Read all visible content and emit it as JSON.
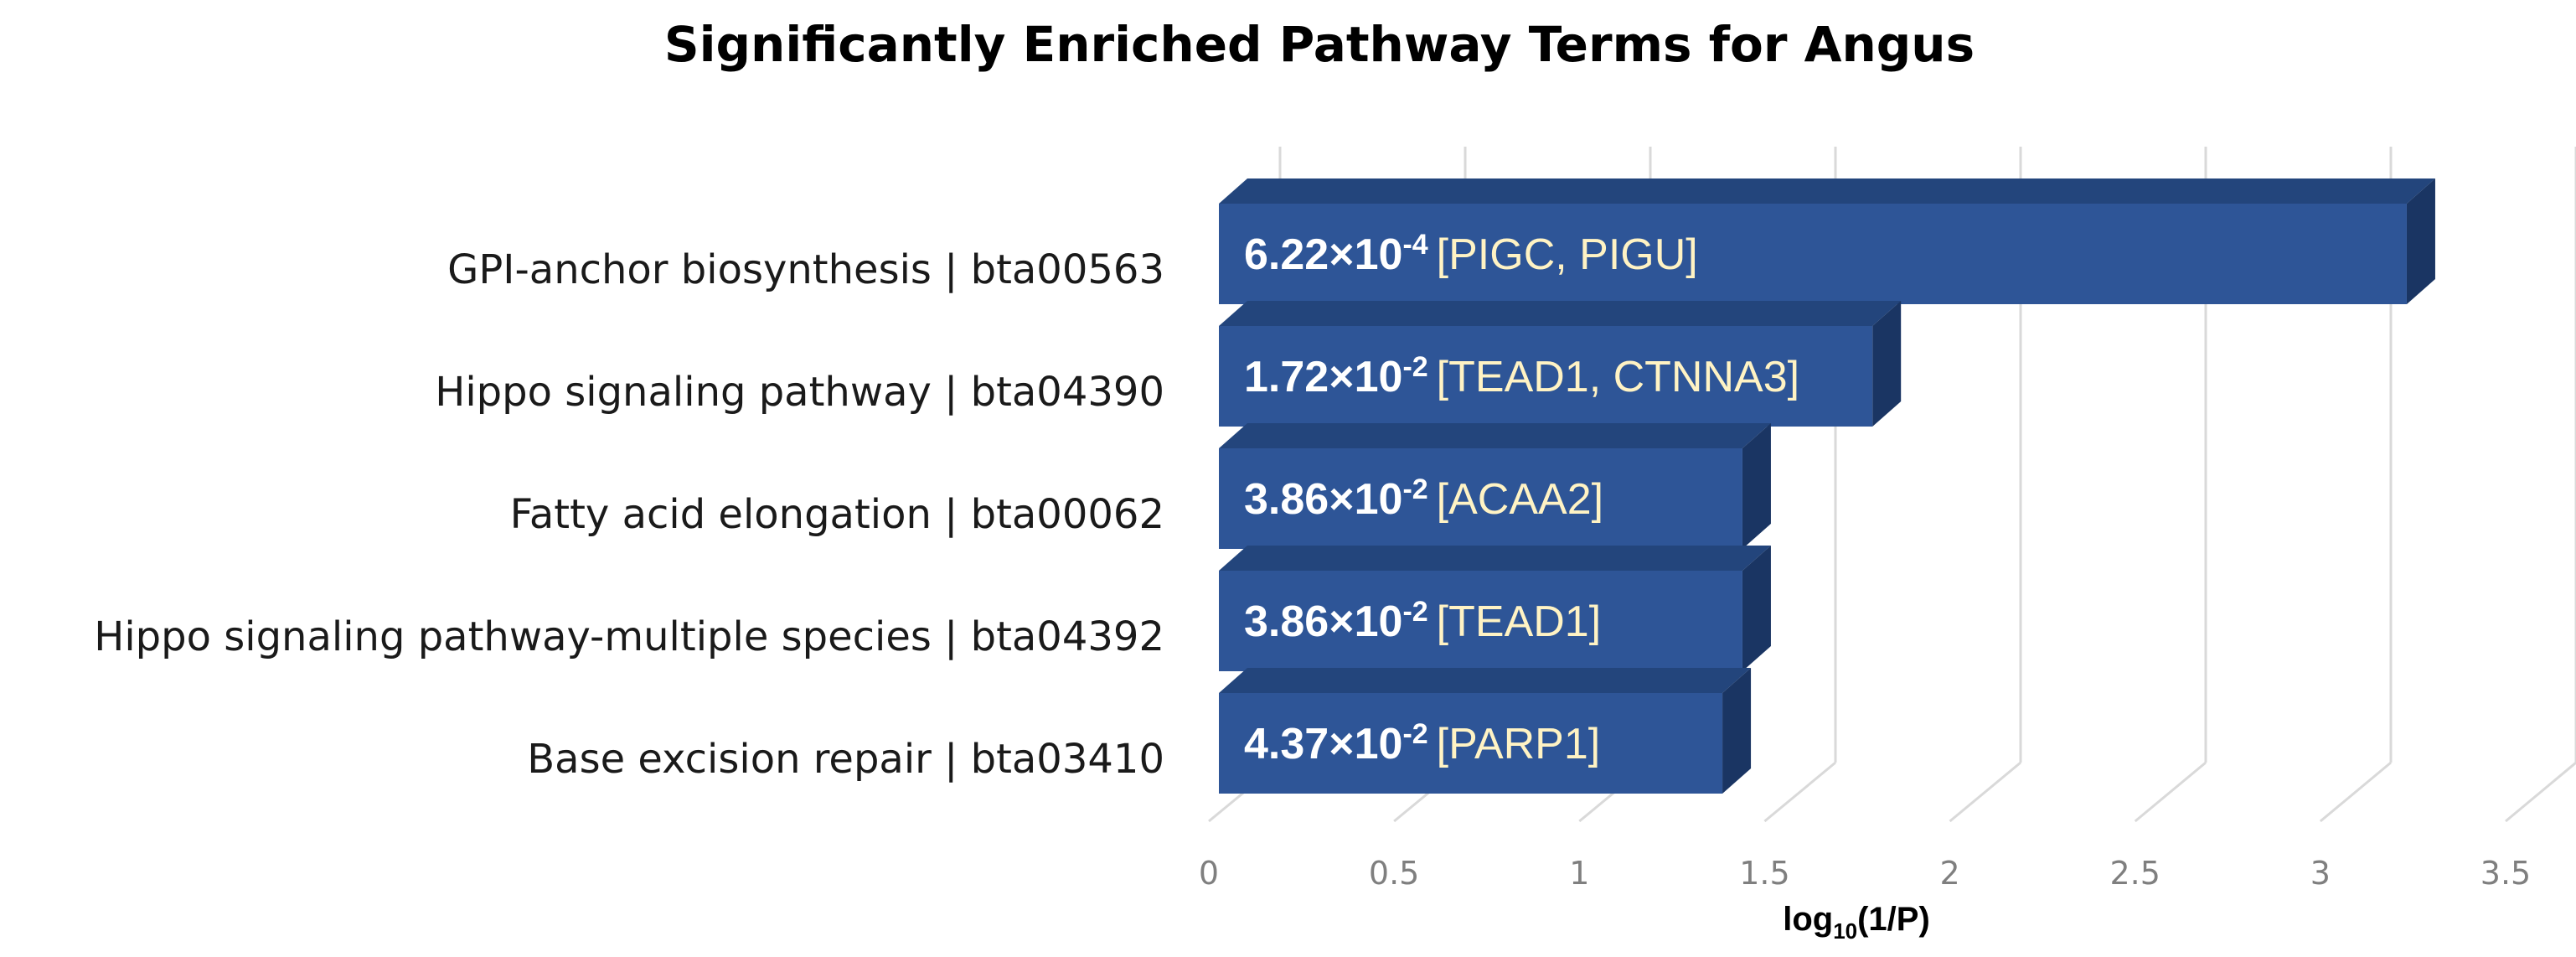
{
  "chart_data": {
    "type": "bar",
    "orientation": "horizontal",
    "style": "3d",
    "title": "Significantly Enriched Pathway Terms for Angus",
    "xlabel": {
      "base": "log",
      "subscript": "10",
      "rest": "(1/P)"
    },
    "ylabel": "",
    "xlim": [
      0,
      3.5
    ],
    "ticks": [
      "0",
      "0.5",
      "1",
      "1.5",
      "2",
      "2.5",
      "3",
      "3.5"
    ],
    "tick_values": [
      0,
      0.5,
      1,
      1.5,
      2,
      2.5,
      3,
      3.5
    ],
    "grid": true,
    "bar_color": "#2e5597",
    "bar_top_color": "#23457c",
    "bar_side_color": "#1a3563",
    "categories": [
      "GPI-anchor biosynthesis | bta00563",
      "Hippo signaling pathway | bta04390",
      "Fatty acid elongation | bta00062",
      "Hippo signaling pathway-multiple species | bta04392",
      "Base excision repair | bta03410"
    ],
    "values": [
      3.206,
      1.764,
      1.413,
      1.413,
      1.359
    ],
    "data_labels": [
      {
        "mantissa": "6.22",
        "times": "×",
        "base": "10",
        "exponent": "-4",
        "genes": "[PIGC, PIGU]"
      },
      {
        "mantissa": "1.72",
        "times": "×",
        "base": "10",
        "exponent": "-2",
        "genes": "[TEAD1, CTNNA3]"
      },
      {
        "mantissa": "3.86",
        "times": "×",
        "base": "10",
        "exponent": "-2",
        "genes": "[ACAA2]"
      },
      {
        "mantissa": "3.86",
        "times": "×",
        "base": "10",
        "exponent": "-2",
        "genes": "[TEAD1]"
      },
      {
        "mantissa": "4.37",
        "times": "×",
        "base": "10",
        "exponent": "-2",
        "genes": "[PARP1]"
      }
    ]
  }
}
